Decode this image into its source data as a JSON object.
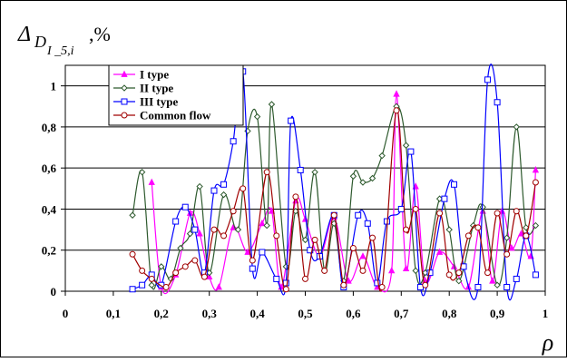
{
  "chart_data": {
    "type": "line",
    "title": "",
    "ylabel_main": "Δ",
    "ylabel_sub": "D",
    "ylabel_subsub": "I _5,i",
    "ylabel_suffix": ",%",
    "xlabel": "ρ",
    "xlim": [
      0,
      1
    ],
    "ylim": [
      0,
      1.1
    ],
    "x_ticks": [
      0,
      0.1,
      0.2,
      0.3,
      0.4,
      0.5,
      0.6,
      0.7,
      0.8,
      0.9,
      1
    ],
    "x_tick_labels": [
      "0",
      "0,1",
      "0,2",
      "0,3",
      "0,4",
      "0,5",
      "0,6",
      "0,7",
      "0,8",
      "0,9",
      "1"
    ],
    "y_ticks": [
      0,
      0.2,
      0.4,
      0.6,
      0.8,
      1
    ],
    "y_tick_labels": [
      "0",
      "0,2",
      "0,4",
      "0,6",
      "0,8",
      "1"
    ],
    "grid": "horizontal",
    "legend_position": "top-left",
    "series": [
      {
        "name": "I type",
        "color": "#ff00ff",
        "marker": "triangle",
        "x": [
          0.18,
          0.2,
          0.23,
          0.26,
          0.28,
          0.3,
          0.32,
          0.35,
          0.38,
          0.41,
          0.43,
          0.45,
          0.48,
          0.5,
          0.53,
          0.56,
          0.59,
          0.62,
          0.65,
          0.68,
          0.69,
          0.71,
          0.73,
          0.75,
          0.78,
          0.81,
          0.84,
          0.87,
          0.89,
          0.91,
          0.93,
          0.95,
          0.97,
          0.98
        ],
        "y": [
          0.53,
          0.02,
          0.08,
          0.38,
          0.28,
          0.07,
          0.02,
          0.31,
          0.19,
          0.33,
          0.39,
          0.02,
          0.44,
          0.35,
          0.17,
          0.36,
          0.05,
          0.17,
          0.02,
          0.1,
          0.96,
          0.11,
          0.51,
          0.05,
          0.19,
          0.12,
          0.02,
          0.39,
          0.05,
          0.39,
          0.21,
          0.28,
          0.17,
          0.59
        ]
      },
      {
        "name": "II type",
        "color": "#2e5a2e",
        "marker": "diamond",
        "x": [
          0.14,
          0.16,
          0.18,
          0.2,
          0.22,
          0.24,
          0.26,
          0.28,
          0.3,
          0.33,
          0.36,
          0.38,
          0.4,
          0.42,
          0.43,
          0.46,
          0.48,
          0.5,
          0.52,
          0.54,
          0.56,
          0.58,
          0.6,
          0.62,
          0.64,
          0.66,
          0.69,
          0.71,
          0.73,
          0.75,
          0.78,
          0.8,
          0.82,
          0.85,
          0.87,
          0.9,
          0.92,
          0.94,
          0.96,
          0.98
        ],
        "y": [
          0.37,
          0.58,
          0.03,
          0.12,
          0.06,
          0.21,
          0.28,
          0.51,
          0.09,
          0.47,
          0.3,
          0.78,
          0.85,
          0.32,
          0.91,
          0.12,
          0.39,
          0.25,
          0.58,
          0.1,
          0.33,
          0.05,
          0.56,
          0.53,
          0.55,
          0.66,
          0.9,
          0.71,
          0.1,
          0.09,
          0.45,
          0.3,
          0.05,
          0.32,
          0.41,
          0.03,
          0.26,
          0.8,
          0.31,
          0.32
        ]
      },
      {
        "name": "III type",
        "color": "#0000ff",
        "marker": "square",
        "x": [
          0.14,
          0.16,
          0.18,
          0.2,
          0.23,
          0.25,
          0.27,
          0.29,
          0.31,
          0.33,
          0.35,
          0.37,
          0.39,
          0.41,
          0.44,
          0.46,
          0.47,
          0.49,
          0.51,
          0.53,
          0.56,
          0.58,
          0.61,
          0.63,
          0.65,
          0.67,
          0.7,
          0.72,
          0.74,
          0.76,
          0.79,
          0.81,
          0.83,
          0.86,
          0.88,
          0.9,
          0.92,
          0.94,
          0.96,
          0.98
        ],
        "y": [
          0.01,
          0.03,
          0.08,
          0.03,
          0.34,
          0.41,
          0.3,
          0.09,
          0.49,
          0.52,
          0.73,
          1.07,
          0.11,
          0.19,
          0.06,
          0.04,
          0.83,
          0.59,
          0.2,
          0.17,
          0.37,
          0.02,
          0.37,
          0.33,
          0.04,
          0.34,
          0.4,
          0.68,
          0.02,
          0.09,
          0.45,
          0.52,
          0.12,
          0.02,
          1.03,
          0.92,
          0.02,
          0.06,
          0.27,
          0.08
        ]
      },
      {
        "name": "Common flow",
        "color": "#a00000",
        "marker": "circle",
        "x": [
          0.14,
          0.16,
          0.18,
          0.21,
          0.23,
          0.25,
          0.27,
          0.29,
          0.31,
          0.33,
          0.35,
          0.37,
          0.39,
          0.42,
          0.44,
          0.46,
          0.48,
          0.5,
          0.52,
          0.54,
          0.56,
          0.58,
          0.6,
          0.62,
          0.64,
          0.66,
          0.69,
          0.71,
          0.73,
          0.75,
          0.78,
          0.8,
          0.82,
          0.84,
          0.86,
          0.88,
          0.9,
          0.92,
          0.94,
          0.96,
          0.98
        ],
        "y": [
          0.18,
          0.1,
          0.06,
          0.02,
          0.09,
          0.12,
          0.15,
          0.07,
          0.3,
          0.27,
          0.39,
          0.5,
          0.15,
          0.58,
          0.27,
          0.01,
          0.46,
          0.06,
          0.25,
          0.1,
          0.37,
          0.03,
          0.21,
          0.1,
          0.26,
          0.02,
          0.88,
          0.3,
          0.4,
          0.03,
          0.38,
          0.08,
          0.09,
          0.27,
          0.31,
          0.09,
          0.38,
          0.18,
          0.39,
          0.27,
          0.53
        ]
      }
    ]
  }
}
